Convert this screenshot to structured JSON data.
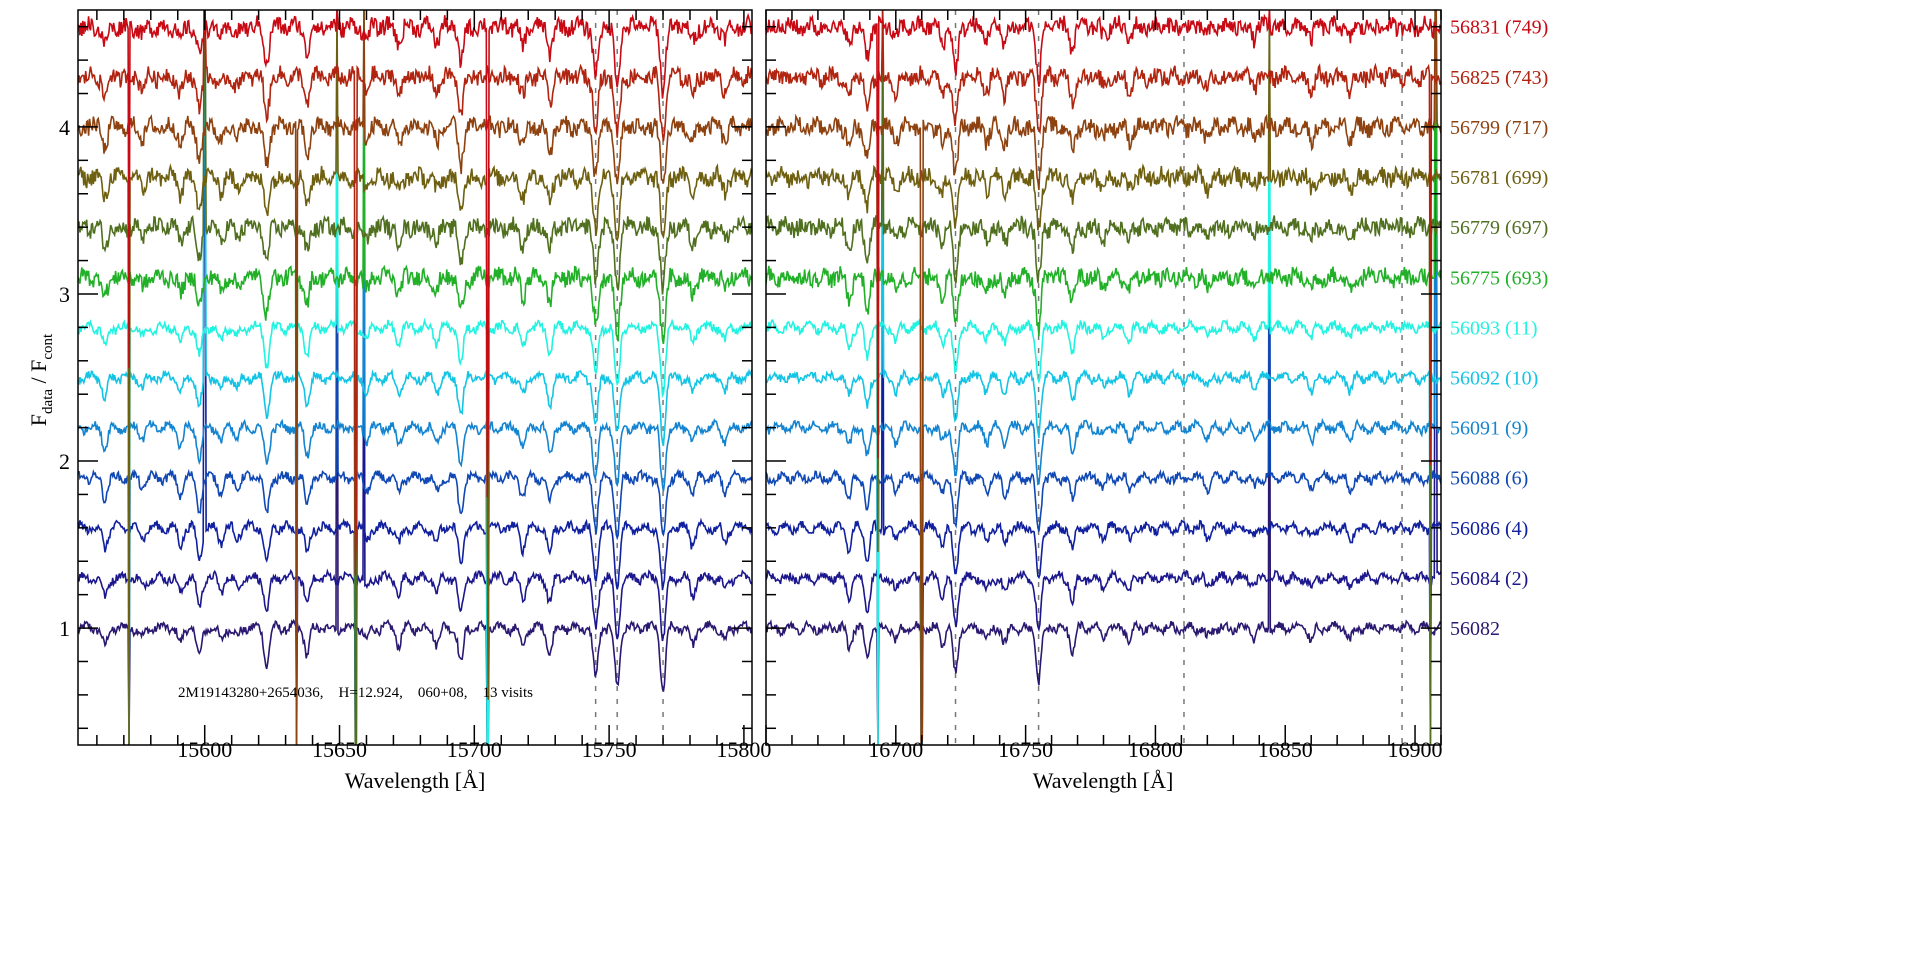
{
  "chart_data": {
    "type": "line",
    "title": "",
    "annotation": "2M19143280+2654036,    H=12.924,    060+08,    13 visits",
    "ylabel": {
      "main": "F",
      "sub1": "data",
      "sep": " / F",
      "sub2": "cont"
    },
    "ylim": [
      0.3,
      4.7
    ],
    "yticks": [
      1,
      2,
      3,
      4
    ],
    "panels": [
      {
        "xlabel": "Wavelength [Å]",
        "xlim": [
          15553,
          15803
        ],
        "xticks": [
          15600,
          15650,
          15700,
          15750,
          15800
        ],
        "dashed_lines": [
          15745,
          15753,
          15770
        ],
        "absorption_lines": [
          [
            15563,
            0.12
          ],
          [
            15577,
            0.06
          ],
          [
            15591,
            0.1
          ],
          [
            15598,
            0.18
          ],
          [
            15606,
            0.08
          ],
          [
            15612,
            0.06
          ],
          [
            15623,
            0.22
          ],
          [
            15638,
            0.16
          ],
          [
            15660,
            0.08
          ],
          [
            15672,
            0.1
          ],
          [
            15686,
            0.09
          ],
          [
            15695,
            0.22
          ],
          [
            15718,
            0.12
          ],
          [
            15728,
            0.15
          ],
          [
            15745,
            0.3
          ],
          [
            15753,
            0.35
          ],
          [
            15770,
            0.38
          ],
          [
            15781,
            0.1
          ],
          [
            15793,
            0.08
          ]
        ],
        "spikes": [
          15572,
          15600,
          15634,
          15649,
          15656,
          15659,
          15705
        ]
      },
      {
        "xlabel": "Wavelength [Å]",
        "xlim": [
          16650,
          16910
        ],
        "xticks": [
          16700,
          16750,
          16800,
          16850,
          16900
        ],
        "dashed_lines": [
          16723,
          16755,
          16811,
          16895
        ],
        "absorption_lines": [
          [
            16682,
            0.12
          ],
          [
            16689,
            0.18
          ],
          [
            16700,
            0.08
          ],
          [
            16718,
            0.1
          ],
          [
            16723,
            0.28
          ],
          [
            16735,
            0.08
          ],
          [
            16742,
            0.1
          ],
          [
            16755,
            0.32
          ],
          [
            16768,
            0.14
          ],
          [
            16780,
            0.06
          ],
          [
            16790,
            0.08
          ],
          [
            16820,
            0.06
          ],
          [
            16838,
            0.06
          ],
          [
            16860,
            0.07
          ],
          [
            16875,
            0.08
          ]
        ],
        "spikes": [
          16693,
          16695,
          16710,
          16844,
          16906,
          16908
        ]
      }
    ],
    "series": [
      {
        "name": "56082",
        "offset": 1.0,
        "color": "#2b1870"
      },
      {
        "name": "56084 (2)",
        "offset": 1.3,
        "color": "#1c178c"
      },
      {
        "name": "56086 (4)",
        "offset": 1.6,
        "color": "#10209e"
      },
      {
        "name": "56088 (6)",
        "offset": 1.9,
        "color": "#1048b4"
      },
      {
        "name": "56091 (9)",
        "offset": 2.2,
        "color": "#1484d0"
      },
      {
        "name": "56092 (10)",
        "offset": 2.5,
        "color": "#14c4e4"
      },
      {
        "name": "56093 (11)",
        "offset": 2.8,
        "color": "#22f2e0"
      },
      {
        "name": "56775 (693)",
        "offset": 3.1,
        "color": "#22b028"
      },
      {
        "name": "56779 (697)",
        "offset": 3.4,
        "color": "#507020"
      },
      {
        "name": "56781 (699)",
        "offset": 3.7,
        "color": "#6e6010"
      },
      {
        "name": "56799 (717)",
        "offset": 4.0,
        "color": "#8e4210"
      },
      {
        "name": "56825 (743)",
        "offset": 4.3,
        "color": "#b02410"
      },
      {
        "name": "56831 (749)",
        "offset": 4.6,
        "color": "#c80a14"
      }
    ]
  }
}
